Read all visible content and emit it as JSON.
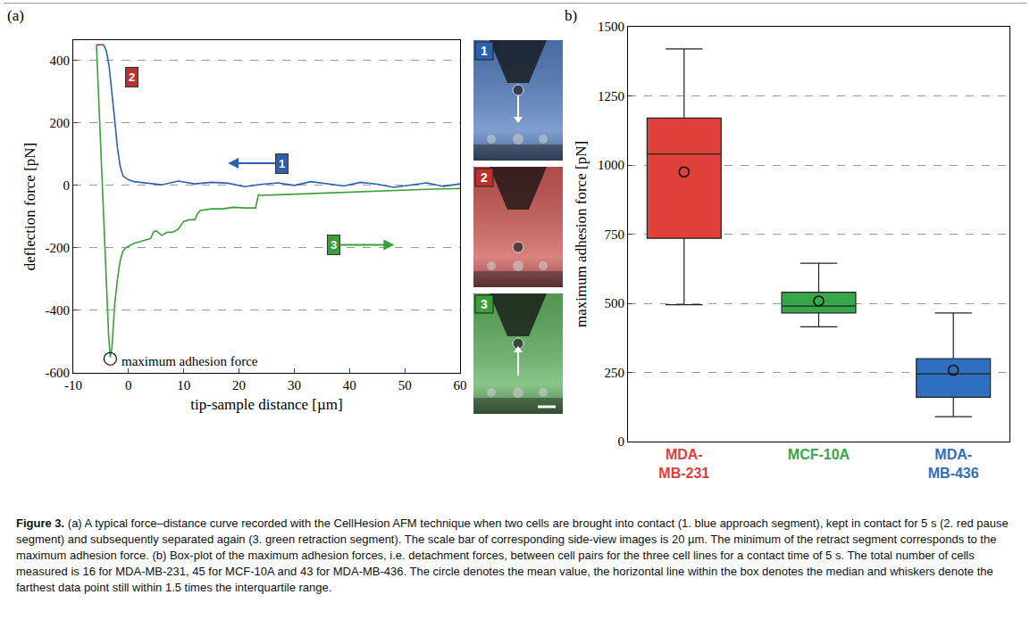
{
  "chart_data": [
    {
      "type": "line",
      "panel_label": "(a)",
      "x_label": "tip-sample distance [µm]",
      "y_label": "deflection force [pN]",
      "xlim": [
        -10,
        60
      ],
      "xticks": [
        -10,
        0,
        10,
        20,
        30,
        40,
        50,
        60
      ],
      "ylim": [
        -600,
        465
      ],
      "yticks": [
        -600,
        -400,
        -200,
        0,
        200,
        400
      ],
      "grid": true,
      "series": [
        {
          "name": "1",
          "color": "#2b5fb0",
          "x": [
            60,
            57,
            54,
            51,
            48,
            45,
            42,
            39,
            36,
            33,
            30,
            27,
            24,
            21,
            18,
            15,
            12,
            9,
            6,
            3,
            1,
            0,
            -1,
            -1.5,
            -2,
            -2.5,
            -3,
            -3.5,
            -4,
            -4.5
          ],
          "values": [
            5,
            -3,
            8,
            0,
            -6,
            4,
            10,
            -2,
            6,
            12,
            0,
            8,
            3,
            -4,
            7,
            10,
            5,
            14,
            2,
            9,
            12,
            18,
            30,
            60,
            120,
            210,
            300,
            380,
            430,
            450
          ]
        },
        {
          "name": "2",
          "color": "#c0302a",
          "x": [
            -4.5,
            -5.8
          ],
          "values": [
            450,
            450
          ]
        },
        {
          "name": "3",
          "color": "#3a9e3a",
          "x": [
            -5.8,
            -5.2,
            -4.6,
            -4.0,
            -3.6,
            -3.3,
            -3.0,
            -2.5,
            -2,
            -1.5,
            -1,
            -0.5,
            0,
            1,
            2,
            3,
            4,
            4.5,
            5,
            6,
            7,
            8,
            9,
            10,
            11,
            12,
            12.5,
            13,
            15,
            17,
            19,
            21,
            23,
            23.5,
            24,
            27,
            30,
            35,
            40,
            45,
            50,
            55,
            60
          ],
          "values": [
            450,
            200,
            -100,
            -350,
            -480,
            -550,
            -520,
            -380,
            -300,
            -240,
            -210,
            -200,
            -195,
            -185,
            -180,
            -175,
            -170,
            -150,
            -145,
            -160,
            -150,
            -150,
            -140,
            -115,
            -110,
            -110,
            -90,
            -80,
            -75,
            -75,
            -70,
            -72,
            -72,
            -30,
            -32,
            -30,
            -28,
            -25,
            -20,
            -18,
            -15,
            -12,
            -10
          ]
        }
      ],
      "annotations": [
        {
          "text": "maximum adhesion force",
          "x": -3.3,
          "y": -555
        }
      ]
    },
    {
      "type": "box",
      "panel_label": "b)",
      "y_label": "maximum adhesion force [pN]",
      "categories": [
        "MDA-MB-231",
        "MCF-10A",
        "MDA-MB-436"
      ],
      "colors": [
        "#e0403a",
        "#3aa64a",
        "#2f6fbf"
      ],
      "lowerfence": [
        495,
        415,
        90
      ],
      "q1": [
        735,
        465,
        160
      ],
      "median": [
        1040,
        490,
        245
      ],
      "q3": [
        1170,
        540,
        300
      ],
      "upperfence": [
        1420,
        645,
        465
      ],
      "mean": [
        975,
        508,
        258
      ],
      "ylim": [
        0,
        1500
      ],
      "yticks": [
        0,
        250,
        500,
        750,
        1000,
        1250,
        1500
      ],
      "grid": true
    }
  ],
  "caption": {
    "label": "Figure 3.",
    "text": "(a) A typical force–distance curve recorded with the CellHesion AFM technique when two cells are brought into contact (1. blue approach segment), kept in contact for 5 s (2. red pause segment) and subsequently separated again (3. green retraction segment). The scale bar of corresponding side-view images is 20 µm. The minimum of the retract segment corresponds to the maximum adhesion force. (b) Box-plot of the maximum adhesion forces, i.e. detachment forces, between cell pairs for the three cell lines for a contact time of 5 s. The total number of cells measured is 16 for MDA-MB-231, 45 for MCF-10A and 43 for MDA-MB-436. The circle denotes the mean value, the horizontal line within the box denotes the median and whiskers denote the farthest data point still within 1.5 times the interquartile range."
  }
}
